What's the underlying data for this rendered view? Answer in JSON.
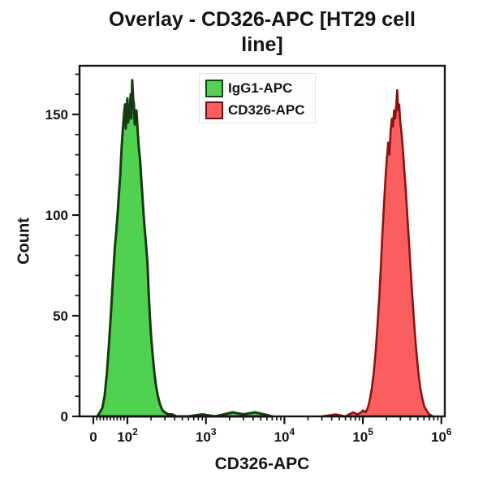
{
  "figure": {
    "title_lines": [
      "Overlay - CD326-APC [HT29 cell",
      "line]"
    ]
  },
  "chart_data": {
    "type": "area",
    "subtype": "flow-cytometry-overlay-histogram",
    "title": "Overlay - CD326-APC [HT29 cell line]",
    "xlabel": "CD326-APC",
    "ylabel": "Count",
    "x_axis": {
      "scale": "logicle (linear 0-100, then log decades to 1000000)",
      "ticks": [
        {
          "value": 0,
          "label": "0"
        },
        {
          "value": 100,
          "label": "10^2"
        },
        {
          "value": 1000,
          "label": "10^3"
        },
        {
          "value": 10000,
          "label": "10^4"
        },
        {
          "value": 100000,
          "label": "10^5"
        },
        {
          "value": 1000000,
          "label": "10^6"
        }
      ]
    },
    "y_axis": {
      "ticks": [
        0,
        50,
        100,
        150
      ],
      "minor_step": 10,
      "ylim": [
        0,
        174
      ]
    },
    "grid": "off",
    "legend": {
      "position": "top-center-inside",
      "items": [
        {
          "label": "IgG1-APC",
          "color": "#54d254",
          "border": "#194219"
        },
        {
          "label": "CD326-APC",
          "color": "#fb5e5e",
          "border": "#701212"
        }
      ]
    },
    "series": [
      {
        "name": "IgG1-APC",
        "fill": "#50d250",
        "stroke": "#163a12",
        "stroke_width": 3,
        "peak": {
          "x": 115,
          "count": 167
        },
        "points": [
          [
            12,
            0
          ],
          [
            26,
            4
          ],
          [
            33,
            10
          ],
          [
            40,
            22
          ],
          [
            46,
            36
          ],
          [
            52,
            52
          ],
          [
            58,
            70
          ],
          [
            63,
            84
          ],
          [
            67,
            91
          ],
          [
            71,
            100
          ],
          [
            74,
            108
          ],
          [
            77,
            115
          ],
          [
            79,
            120
          ],
          [
            81,
            127
          ],
          [
            83,
            134
          ],
          [
            86,
            141
          ],
          [
            88,
            146
          ],
          [
            91,
            152
          ],
          [
            93,
            155
          ],
          [
            95,
            143
          ],
          [
            97,
            150
          ],
          [
            100,
            158
          ],
          [
            102,
            146
          ],
          [
            105,
            150
          ],
          [
            107,
            152
          ],
          [
            110,
            160
          ],
          [
            112,
            148
          ],
          [
            115,
            167
          ],
          [
            118,
            158
          ],
          [
            121,
            155
          ],
          [
            124,
            145
          ],
          [
            127,
            150
          ],
          [
            130,
            152
          ],
          [
            133,
            146
          ],
          [
            136,
            140
          ],
          [
            140,
            133
          ],
          [
            143,
            130
          ],
          [
            147,
            124
          ],
          [
            150,
            118
          ],
          [
            155,
            110
          ],
          [
            161,
            100
          ],
          [
            167,
            92
          ],
          [
            173,
            85
          ],
          [
            180,
            76
          ],
          [
            186,
            62
          ],
          [
            193,
            50
          ],
          [
            200,
            40
          ],
          [
            210,
            30
          ],
          [
            220,
            22
          ],
          [
            232,
            15
          ],
          [
            245,
            10
          ],
          [
            260,
            6
          ],
          [
            280,
            3
          ],
          [
            300,
            2
          ],
          [
            330,
            1
          ],
          [
            370,
            1
          ],
          [
            420,
            0
          ],
          [
            600,
            0
          ],
          [
            900,
            1
          ],
          [
            1300,
            0
          ],
          [
            2200,
            2
          ],
          [
            3000,
            1
          ],
          [
            4200,
            2
          ],
          [
            5500,
            1
          ],
          [
            7000,
            0
          ]
        ]
      },
      {
        "name": "CD326-APC",
        "fill": "#fb5e5e",
        "stroke": "#8a1212",
        "stroke_width": 2.6,
        "peak": {
          "x": 274000,
          "count": 162
        },
        "points": [
          [
            30000,
            0
          ],
          [
            45000,
            1
          ],
          [
            60000,
            0
          ],
          [
            75000,
            2
          ],
          [
            85000,
            1
          ],
          [
            95000,
            2
          ],
          [
            100000,
            3
          ],
          [
            108000,
            2
          ],
          [
            115000,
            4
          ],
          [
            122000,
            8
          ],
          [
            130000,
            14
          ],
          [
            138000,
            22
          ],
          [
            146000,
            33
          ],
          [
            154000,
            46
          ],
          [
            162000,
            60
          ],
          [
            170000,
            76
          ],
          [
            178000,
            92
          ],
          [
            186000,
            106
          ],
          [
            194000,
            118
          ],
          [
            202000,
            128
          ],
          [
            210000,
            136
          ],
          [
            218000,
            130
          ],
          [
            226000,
            142
          ],
          [
            234000,
            148
          ],
          [
            242000,
            144
          ],
          [
            250000,
            152
          ],
          [
            258000,
            148
          ],
          [
            266000,
            155
          ],
          [
            274000,
            162
          ],
          [
            282000,
            152
          ],
          [
            290000,
            155
          ],
          [
            300000,
            146
          ],
          [
            312000,
            140
          ],
          [
            324000,
            132
          ],
          [
            338000,
            122
          ],
          [
            352000,
            112
          ],
          [
            368000,
            100
          ],
          [
            385000,
            88
          ],
          [
            403000,
            75
          ],
          [
            422000,
            62
          ],
          [
            443000,
            50
          ],
          [
            465000,
            39
          ],
          [
            488000,
            29
          ],
          [
            512000,
            21
          ],
          [
            540000,
            14
          ],
          [
            570000,
            9
          ],
          [
            605000,
            5
          ],
          [
            645000,
            3
          ],
          [
            700000,
            1
          ],
          [
            780000,
            0
          ]
        ]
      }
    ]
  }
}
